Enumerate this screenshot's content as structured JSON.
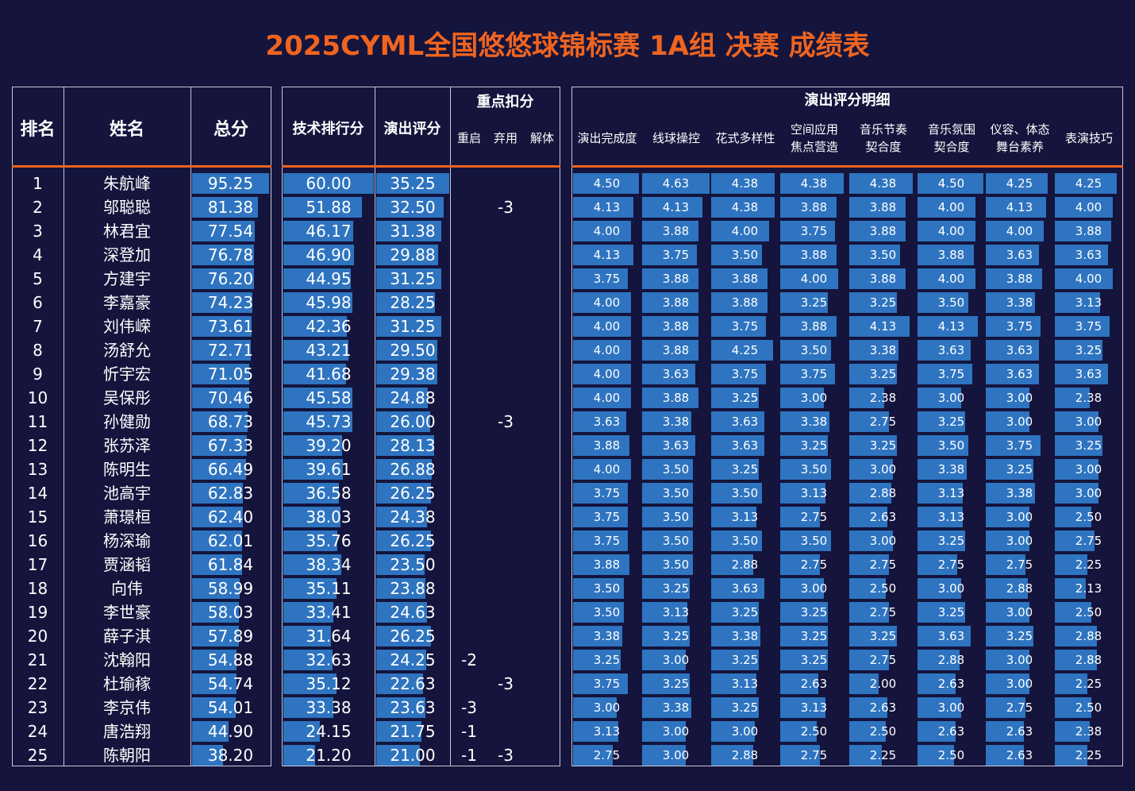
{
  "title": "2025CYML全国悠悠球锦标赛 1A组 决赛 成绩表",
  "headers": {
    "rank": "排名",
    "name": "姓名",
    "total": "总分",
    "tech": "技术排行分",
    "perf": "演出评分",
    "deduction_group": "重点扣分",
    "restart": "重启",
    "discard": "弃用",
    "untie": "解体",
    "detail_group": "演出评分明细",
    "details": [
      [
        "演出完成度"
      ],
      [
        "线球操控"
      ],
      [
        "花式多样性"
      ],
      [
        "空间应用",
        "焦点营造"
      ],
      [
        "音乐节奏",
        "契合度"
      ],
      [
        "音乐氛围",
        "契合度"
      ],
      [
        "仪容、体态",
        "舞台素养"
      ],
      [
        "表演技巧"
      ]
    ]
  },
  "rows": [
    {
      "rank": "1",
      "name": "朱航峰",
      "total": "95.25",
      "tech": "60.00",
      "perf": "35.25",
      "restart": "",
      "discard": "",
      "untie": "",
      "details": [
        "4.50",
        "4.63",
        "4.38",
        "4.38",
        "4.38",
        "4.50",
        "4.25",
        "4.25"
      ]
    },
    {
      "rank": "2",
      "name": "邬聪聪",
      "total": "81.38",
      "tech": "51.88",
      "perf": "32.50",
      "restart": "",
      "discard": "-3",
      "untie": "",
      "details": [
        "4.13",
        "4.13",
        "4.38",
        "3.88",
        "3.88",
        "4.00",
        "4.13",
        "4.00"
      ]
    },
    {
      "rank": "3",
      "name": "林君宜",
      "total": "77.54",
      "tech": "46.17",
      "perf": "31.38",
      "restart": "",
      "discard": "",
      "untie": "",
      "details": [
        "4.00",
        "3.88",
        "4.00",
        "3.75",
        "3.88",
        "4.00",
        "4.00",
        "3.88"
      ]
    },
    {
      "rank": "4",
      "name": "深登加",
      "total": "76.78",
      "tech": "46.90",
      "perf": "29.88",
      "restart": "",
      "discard": "",
      "untie": "",
      "details": [
        "4.13",
        "3.75",
        "3.50",
        "3.88",
        "3.50",
        "3.88",
        "3.63",
        "3.63"
      ]
    },
    {
      "rank": "5",
      "name": "方建宇",
      "total": "76.20",
      "tech": "44.95",
      "perf": "31.25",
      "restart": "",
      "discard": "",
      "untie": "",
      "details": [
        "3.75",
        "3.88",
        "3.88",
        "4.00",
        "3.88",
        "4.00",
        "3.88",
        "4.00"
      ]
    },
    {
      "rank": "6",
      "name": "李嘉豪",
      "total": "74.23",
      "tech": "45.98",
      "perf": "28.25",
      "restart": "",
      "discard": "",
      "untie": "",
      "details": [
        "4.00",
        "3.88",
        "3.88",
        "3.25",
        "3.25",
        "3.50",
        "3.38",
        "3.13"
      ]
    },
    {
      "rank": "7",
      "name": "刘伟嵘",
      "total": "73.61",
      "tech": "42.36",
      "perf": "31.25",
      "restart": "",
      "discard": "",
      "untie": "",
      "details": [
        "4.00",
        "3.88",
        "3.75",
        "3.88",
        "4.13",
        "4.13",
        "3.75",
        "3.75"
      ]
    },
    {
      "rank": "8",
      "name": "汤舒允",
      "total": "72.71",
      "tech": "43.21",
      "perf": "29.50",
      "restart": "",
      "discard": "",
      "untie": "",
      "details": [
        "4.00",
        "3.88",
        "4.25",
        "3.50",
        "3.38",
        "3.63",
        "3.63",
        "3.25"
      ]
    },
    {
      "rank": "9",
      "name": "忻宇宏",
      "total": "71.05",
      "tech": "41.68",
      "perf": "29.38",
      "restart": "",
      "discard": "",
      "untie": "",
      "details": [
        "4.00",
        "3.63",
        "3.75",
        "3.75",
        "3.25",
        "3.75",
        "3.63",
        "3.63"
      ]
    },
    {
      "rank": "10",
      "name": "吴保彤",
      "total": "70.46",
      "tech": "45.58",
      "perf": "24.88",
      "restart": "",
      "discard": "",
      "untie": "",
      "details": [
        "4.00",
        "3.88",
        "3.25",
        "3.00",
        "2.38",
        "3.00",
        "3.00",
        "2.38"
      ]
    },
    {
      "rank": "11",
      "name": "孙健勋",
      "total": "68.73",
      "tech": "45.73",
      "perf": "26.00",
      "restart": "",
      "discard": "-3",
      "untie": "",
      "details": [
        "3.63",
        "3.38",
        "3.63",
        "3.38",
        "2.75",
        "3.25",
        "3.00",
        "3.00"
      ]
    },
    {
      "rank": "12",
      "name": "张苏泽",
      "total": "67.33",
      "tech": "39.20",
      "perf": "28.13",
      "restart": "",
      "discard": "",
      "untie": "",
      "details": [
        "3.88",
        "3.63",
        "3.63",
        "3.25",
        "3.25",
        "3.50",
        "3.75",
        "3.25"
      ]
    },
    {
      "rank": "13",
      "name": "陈明生",
      "total": "66.49",
      "tech": "39.61",
      "perf": "26.88",
      "restart": "",
      "discard": "",
      "untie": "",
      "details": [
        "4.00",
        "3.50",
        "3.25",
        "3.50",
        "3.00",
        "3.38",
        "3.25",
        "3.00"
      ]
    },
    {
      "rank": "14",
      "name": "池高宇",
      "total": "62.83",
      "tech": "36.58",
      "perf": "26.25",
      "restart": "",
      "discard": "",
      "untie": "",
      "details": [
        "3.75",
        "3.50",
        "3.50",
        "3.13",
        "2.88",
        "3.13",
        "3.38",
        "3.00"
      ]
    },
    {
      "rank": "15",
      "name": "萧璟桓",
      "total": "62.40",
      "tech": "38.03",
      "perf": "24.38",
      "restart": "",
      "discard": "",
      "untie": "",
      "details": [
        "3.75",
        "3.50",
        "3.13",
        "2.75",
        "2.63",
        "3.13",
        "3.00",
        "2.50"
      ]
    },
    {
      "rank": "16",
      "name": "杨深瑜",
      "total": "62.01",
      "tech": "35.76",
      "perf": "26.25",
      "restart": "",
      "discard": "",
      "untie": "",
      "details": [
        "3.75",
        "3.50",
        "3.50",
        "3.50",
        "3.00",
        "3.25",
        "3.00",
        "2.75"
      ]
    },
    {
      "rank": "17",
      "name": "贾涵韬",
      "total": "61.84",
      "tech": "38.34",
      "perf": "23.50",
      "restart": "",
      "discard": "",
      "untie": "",
      "details": [
        "3.88",
        "3.50",
        "2.88",
        "2.75",
        "2.75",
        "2.75",
        "2.75",
        "2.25"
      ]
    },
    {
      "rank": "18",
      "name": "向伟",
      "total": "58.99",
      "tech": "35.11",
      "perf": "23.88",
      "restart": "",
      "discard": "",
      "untie": "",
      "details": [
        "3.50",
        "3.25",
        "3.63",
        "3.00",
        "2.50",
        "3.00",
        "2.88",
        "2.13"
      ]
    },
    {
      "rank": "19",
      "name": "李世豪",
      "total": "58.03",
      "tech": "33.41",
      "perf": "24.63",
      "restart": "",
      "discard": "",
      "untie": "",
      "details": [
        "3.50",
        "3.13",
        "3.25",
        "3.25",
        "2.75",
        "3.25",
        "3.00",
        "2.50"
      ]
    },
    {
      "rank": "20",
      "name": "薛子淇",
      "total": "57.89",
      "tech": "31.64",
      "perf": "26.25",
      "restart": "",
      "discard": "",
      "untie": "",
      "details": [
        "3.38",
        "3.25",
        "3.38",
        "3.25",
        "3.25",
        "3.63",
        "3.25",
        "2.88"
      ]
    },
    {
      "rank": "21",
      "name": "沈翰阳",
      "total": "54.88",
      "tech": "32.63",
      "perf": "24.25",
      "restart": "-2",
      "discard": "",
      "untie": "",
      "details": [
        "3.25",
        "3.00",
        "3.25",
        "3.25",
        "2.75",
        "2.88",
        "3.00",
        "2.88"
      ]
    },
    {
      "rank": "22",
      "name": "杜瑜稼",
      "total": "54.74",
      "tech": "35.12",
      "perf": "22.63",
      "restart": "",
      "discard": "-3",
      "untie": "",
      "details": [
        "3.75",
        "3.25",
        "3.13",
        "2.63",
        "2.00",
        "2.63",
        "3.00",
        "2.25"
      ]
    },
    {
      "rank": "23",
      "name": "李京伟",
      "total": "54.01",
      "tech": "33.38",
      "perf": "23.63",
      "restart": "-3",
      "discard": "",
      "untie": "",
      "details": [
        "3.00",
        "3.38",
        "3.25",
        "3.13",
        "2.63",
        "3.00",
        "2.75",
        "2.50"
      ]
    },
    {
      "rank": "24",
      "name": "唐浩翔",
      "total": "44.90",
      "tech": "24.15",
      "perf": "21.75",
      "restart": "-1",
      "discard": "",
      "untie": "",
      "details": [
        "3.13",
        "3.00",
        "3.00",
        "2.50",
        "2.50",
        "2.63",
        "2.63",
        "2.38"
      ]
    },
    {
      "rank": "25",
      "name": "陈朝阳",
      "total": "38.20",
      "tech": "21.20",
      "perf": "21.00",
      "restart": "-1",
      "discard": "-3",
      "untie": "",
      "details": [
        "2.75",
        "3.00",
        "2.88",
        "2.75",
        "2.25",
        "2.50",
        "2.63",
        "2.25"
      ]
    }
  ],
  "scales": {
    "total_max": 95.25,
    "tech_max": 60.0,
    "perf_max": 35.25,
    "detail_max": 4.63
  },
  "colors": {
    "background": "#14143c",
    "title": "#ee6420",
    "bar": "#2e74c0",
    "divider": "#ee6420"
  }
}
